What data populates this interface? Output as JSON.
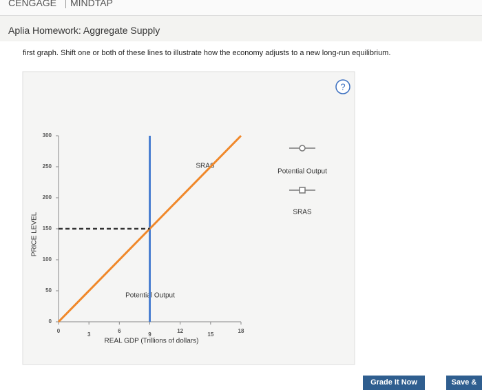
{
  "header": {
    "brand": "CENGAGE",
    "product": "MINDTAP"
  },
  "page_title": "Aplia Homework: Aggregate Supply",
  "instruction": "first graph. Shift one or both of these lines to illustrate how the economy adjusts to a new long-run equilibrium.",
  "help": "?",
  "chart_data": {
    "type": "line",
    "x_label": "REAL GDP (Trillions of dollars)",
    "y_label": "PRICE LEVEL",
    "xlim": [
      0,
      18
    ],
    "xticks": [
      0,
      3,
      6,
      9,
      12,
      15,
      18
    ],
    "ylim": [
      0,
      300
    ],
    "yticks": [
      0,
      50,
      100,
      150,
      200,
      250,
      300
    ],
    "series": [
      {
        "name": "Potential Output",
        "color": "#4a7fd1",
        "x": [
          9,
          9
        ],
        "values": [
          0,
          300
        ]
      },
      {
        "name": "SRAS",
        "color": "#f0882a",
        "x": [
          0,
          18
        ],
        "values": [
          0,
          300
        ]
      },
      {
        "color": "#333333",
        "dashed": true,
        "x": [
          0,
          9
        ],
        "values": [
          150,
          150
        ]
      }
    ],
    "annotations": [
      "SRAS",
      "Potential Output"
    ]
  },
  "buttons": [
    "Grade It Now",
    "Save &"
  ]
}
